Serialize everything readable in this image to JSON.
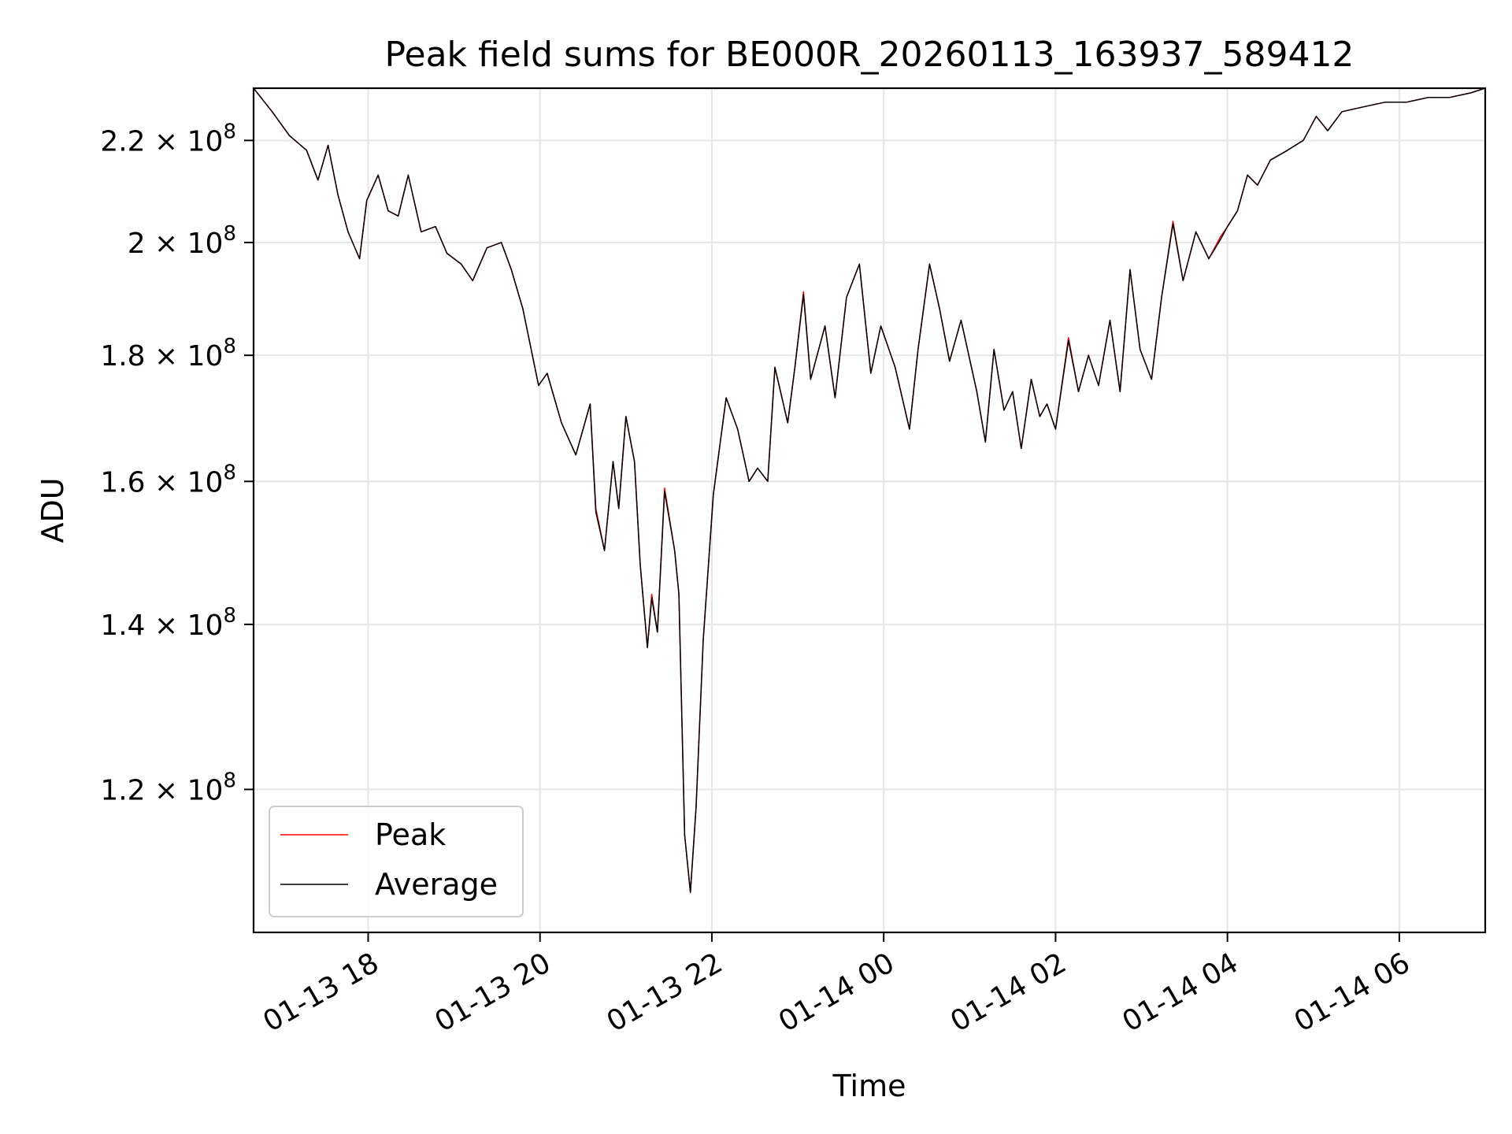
{
  "chart_data": {
    "type": "line",
    "title": "Peak field sums for BE000R_20260113_163937_589412",
    "xlabel": "Time",
    "ylabel": "ADU",
    "xlim": [
      "2026-01-13 16:40",
      "2026-01-14 07:00"
    ],
    "ylim": [
      105000000,
      231000000
    ],
    "yscale": "log",
    "grid": true,
    "legend": "lower-left",
    "x_ticks": [
      {
        "t": "2026-01-13 18:00",
        "label": "01-13 18"
      },
      {
        "t": "2026-01-13 20:00",
        "label": "01-13 20"
      },
      {
        "t": "2026-01-13 22:00",
        "label": "01-13 22"
      },
      {
        "t": "2026-01-14 00:00",
        "label": "01-14 00"
      },
      {
        "t": "2026-01-14 02:00",
        "label": "01-14 02"
      },
      {
        "t": "2026-01-14 04:00",
        "label": "01-14 04"
      },
      {
        "t": "2026-01-14 06:00",
        "label": "01-14 06"
      }
    ],
    "y_ticks": [
      {
        "value": 120000000,
        "mantissa": "1.2",
        "exp": "8"
      },
      {
        "value": 140000000,
        "mantissa": "1.4",
        "exp": "8"
      },
      {
        "value": 160000000,
        "mantissa": "1.6",
        "exp": "8"
      },
      {
        "value": 180000000,
        "mantissa": "1.8",
        "exp": "8"
      },
      {
        "value": 200000000,
        "mantissa": "2",
        "exp": "8"
      },
      {
        "value": 220000000,
        "mantissa": "2.2",
        "exp": "8"
      }
    ],
    "colors": {
      "peak": "#ff0000",
      "average": "#000000",
      "grid": "#e6e6e6"
    },
    "series": [
      {
        "name": "Peak",
        "color": "#ff0000",
        "x": [
          "2026-01-13 16:40",
          "2026-01-13 16:53",
          "2026-01-13 17:05",
          "2026-01-13 17:17",
          "2026-01-13 17:25",
          "2026-01-13 17:32",
          "2026-01-13 17:39",
          "2026-01-13 17:46",
          "2026-01-13 17:54",
          "2026-01-13 17:59",
          "2026-01-13 18:07",
          "2026-01-13 18:14",
          "2026-01-13 18:21",
          "2026-01-13 18:28",
          "2026-01-13 18:37",
          "2026-01-13 18:47",
          "2026-01-13 18:55",
          "2026-01-13 19:05",
          "2026-01-13 19:13",
          "2026-01-13 19:23",
          "2026-01-13 19:33",
          "2026-01-13 19:40",
          "2026-01-13 19:48",
          "2026-01-13 19:59",
          "2026-01-13 20:05",
          "2026-01-13 20:15",
          "2026-01-13 20:25",
          "2026-01-13 20:35",
          "2026-01-13 20:39",
          "2026-01-13 20:45",
          "2026-01-13 20:51",
          "2026-01-13 20:55",
          "2026-01-13 21:00",
          "2026-01-13 21:06",
          "2026-01-13 21:10",
          "2026-01-13 21:15",
          "2026-01-13 21:18",
          "2026-01-13 21:22",
          "2026-01-13 21:27",
          "2026-01-13 21:34",
          "2026-01-13 21:37",
          "2026-01-13 21:41",
          "2026-01-13 21:45",
          "2026-01-13 21:49",
          "2026-01-13 21:54",
          "2026-01-13 22:01",
          "2026-01-13 22:10",
          "2026-01-13 22:18",
          "2026-01-13 22:26",
          "2026-01-13 22:32",
          "2026-01-13 22:39",
          "2026-01-13 22:44",
          "2026-01-13 22:53",
          "2026-01-13 22:58",
          "2026-01-13 23:04",
          "2026-01-13 23:09",
          "2026-01-13 23:19",
          "2026-01-13 23:26",
          "2026-01-13 23:34",
          "2026-01-13 23:43",
          "2026-01-13 23:51",
          "2026-01-13 23:58",
          "2026-01-14 00:08",
          "2026-01-14 00:18",
          "2026-01-14 00:24",
          "2026-01-14 00:32",
          "2026-01-14 00:39",
          "2026-01-14 00:46",
          "2026-01-14 00:54",
          "2026-01-14 01:05",
          "2026-01-14 01:11",
          "2026-01-14 01:17",
          "2026-01-14 01:24",
          "2026-01-14 01:30",
          "2026-01-14 01:36",
          "2026-01-14 01:43",
          "2026-01-14 01:49",
          "2026-01-14 01:54",
          "2026-01-14 02:00",
          "2026-01-14 02:09",
          "2026-01-14 02:16",
          "2026-01-14 02:23",
          "2026-01-14 02:30",
          "2026-01-14 02:38",
          "2026-01-14 02:45",
          "2026-01-14 02:52",
          "2026-01-14 02:59",
          "2026-01-14 03:07",
          "2026-01-14 03:14",
          "2026-01-14 03:22",
          "2026-01-14 03:29",
          "2026-01-14 03:38",
          "2026-01-14 03:47",
          "2026-01-14 03:55",
          "2026-01-14 04:00",
          "2026-01-14 04:07",
          "2026-01-14 04:14",
          "2026-01-14 04:21",
          "2026-01-14 04:30",
          "2026-01-14 04:42",
          "2026-01-14 04:53",
          "2026-01-14 05:02",
          "2026-01-14 05:10",
          "2026-01-14 05:20",
          "2026-01-14 05:35",
          "2026-01-14 05:50",
          "2026-01-14 06:05",
          "2026-01-14 06:20",
          "2026-01-14 06:35",
          "2026-01-14 06:50",
          "2026-01-14 07:00"
        ],
        "y": [
          231000000,
          226000000,
          221000000,
          218000000,
          212000000,
          219000000,
          209000000,
          202000000,
          197000000,
          208000000,
          213000000,
          206000000,
          205000000,
          213000000,
          202000000,
          203000000,
          198000000,
          196000000,
          193000000,
          199000000,
          200000000,
          195000000,
          188000000,
          175000000,
          177000000,
          169000000,
          164000000,
          172000000,
          156000000,
          150000000,
          163000000,
          156000000,
          170000000,
          163000000,
          148000000,
          137000000,
          144000000,
          139000000,
          159000000,
          150000000,
          144000000,
          115000000,
          109000000,
          118000000,
          138000000,
          158000000,
          173000000,
          168000000,
          160000000,
          162000000,
          160000000,
          178000000,
          169000000,
          178000000,
          191000000,
          176000000,
          185000000,
          173000000,
          190000000,
          196000000,
          177000000,
          185000000,
          178000000,
          168000000,
          181000000,
          196000000,
          188000000,
          179000000,
          186000000,
          174000000,
          166000000,
          181000000,
          171000000,
          174000000,
          165000000,
          176000000,
          170000000,
          172000000,
          168000000,
          183000000,
          174000000,
          180000000,
          175000000,
          186000000,
          174000000,
          195000000,
          181000000,
          176000000,
          190000000,
          204000000,
          193000000,
          202000000,
          197000000,
          201000000,
          203000000,
          206000000,
          213000000,
          211000000,
          216000000,
          218000000,
          220000000,
          225000000,
          222000000,
          226000000,
          227000000,
          228000000,
          228000000,
          229000000,
          229000000,
          230000000,
          231000000
        ]
      },
      {
        "name": "Average",
        "color": "#000000",
        "x": [
          "2026-01-13 16:40",
          "2026-01-13 16:53",
          "2026-01-13 17:05",
          "2026-01-13 17:17",
          "2026-01-13 17:25",
          "2026-01-13 17:32",
          "2026-01-13 17:39",
          "2026-01-13 17:46",
          "2026-01-13 17:54",
          "2026-01-13 17:59",
          "2026-01-13 18:07",
          "2026-01-13 18:14",
          "2026-01-13 18:21",
          "2026-01-13 18:28",
          "2026-01-13 18:37",
          "2026-01-13 18:47",
          "2026-01-13 18:55",
          "2026-01-13 19:05",
          "2026-01-13 19:13",
          "2026-01-13 19:23",
          "2026-01-13 19:33",
          "2026-01-13 19:40",
          "2026-01-13 19:48",
          "2026-01-13 19:59",
          "2026-01-13 20:05",
          "2026-01-13 20:15",
          "2026-01-13 20:25",
          "2026-01-13 20:35",
          "2026-01-13 20:39",
          "2026-01-13 20:45",
          "2026-01-13 20:51",
          "2026-01-13 20:55",
          "2026-01-13 21:00",
          "2026-01-13 21:06",
          "2026-01-13 21:10",
          "2026-01-13 21:15",
          "2026-01-13 21:18",
          "2026-01-13 21:22",
          "2026-01-13 21:27",
          "2026-01-13 21:34",
          "2026-01-13 21:37",
          "2026-01-13 21:41",
          "2026-01-13 21:45",
          "2026-01-13 21:49",
          "2026-01-13 21:54",
          "2026-01-13 22:01",
          "2026-01-13 22:10",
          "2026-01-13 22:18",
          "2026-01-13 22:26",
          "2026-01-13 22:32",
          "2026-01-13 22:39",
          "2026-01-13 22:44",
          "2026-01-13 22:53",
          "2026-01-13 22:58",
          "2026-01-13 23:04",
          "2026-01-13 23:09",
          "2026-01-13 23:19",
          "2026-01-13 23:26",
          "2026-01-13 23:34",
          "2026-01-13 23:43",
          "2026-01-13 23:51",
          "2026-01-13 23:58",
          "2026-01-14 00:08",
          "2026-01-14 00:18",
          "2026-01-14 00:24",
          "2026-01-14 00:32",
          "2026-01-14 00:39",
          "2026-01-14 00:46",
          "2026-01-14 00:54",
          "2026-01-14 01:05",
          "2026-01-14 01:11",
          "2026-01-14 01:17",
          "2026-01-14 01:24",
          "2026-01-14 01:30",
          "2026-01-14 01:36",
          "2026-01-14 01:43",
          "2026-01-14 01:49",
          "2026-01-14 01:54",
          "2026-01-14 02:00",
          "2026-01-14 02:09",
          "2026-01-14 02:16",
          "2026-01-14 02:23",
          "2026-01-14 02:30",
          "2026-01-14 02:38",
          "2026-01-14 02:45",
          "2026-01-14 02:52",
          "2026-01-14 02:59",
          "2026-01-14 03:07",
          "2026-01-14 03:14",
          "2026-01-14 03:22",
          "2026-01-14 03:29",
          "2026-01-14 03:38",
          "2026-01-14 03:47",
          "2026-01-14 03:55",
          "2026-01-14 04:00",
          "2026-01-14 04:07",
          "2026-01-14 04:14",
          "2026-01-14 04:21",
          "2026-01-14 04:30",
          "2026-01-14 04:42",
          "2026-01-14 04:53",
          "2026-01-14 05:02",
          "2026-01-14 05:10",
          "2026-01-14 05:20",
          "2026-01-14 05:35",
          "2026-01-14 05:50",
          "2026-01-14 06:05",
          "2026-01-14 06:20",
          "2026-01-14 06:35",
          "2026-01-14 06:50",
          "2026-01-14 07:00"
        ],
        "y": [
          231000000,
          226000000,
          221000000,
          218000000,
          212000000,
          219000000,
          209000000,
          202000000,
          197000000,
          208000000,
          213000000,
          206000000,
          205000000,
          213000000,
          202000000,
          203000000,
          198000000,
          196000000,
          193000000,
          199000000,
          200000000,
          195000000,
          188000000,
          175000000,
          177000000,
          169000000,
          164000000,
          172000000,
          155500000,
          150000000,
          163000000,
          156000000,
          170000000,
          163000000,
          148000000,
          137000000,
          143500000,
          139000000,
          158500000,
          150000000,
          144000000,
          115000000,
          109000000,
          118000000,
          138000000,
          158000000,
          173000000,
          168000000,
          160000000,
          162000000,
          160000000,
          178000000,
          169000000,
          178000000,
          190500000,
          176000000,
          185000000,
          173000000,
          190000000,
          196000000,
          177000000,
          185000000,
          178000000,
          168000000,
          181000000,
          196000000,
          188000000,
          179000000,
          186000000,
          174000000,
          166000000,
          181000000,
          171000000,
          174000000,
          165000000,
          176000000,
          170000000,
          172000000,
          168000000,
          182500000,
          174000000,
          180000000,
          175000000,
          186000000,
          174000000,
          195000000,
          181000000,
          176000000,
          190000000,
          203500000,
          193000000,
          202000000,
          197000000,
          200500000,
          203000000,
          206000000,
          213000000,
          211000000,
          216000000,
          218000000,
          220000000,
          225000000,
          222000000,
          226000000,
          227000000,
          228000000,
          228000000,
          229000000,
          229000000,
          230000000,
          231000000
        ]
      }
    ]
  }
}
